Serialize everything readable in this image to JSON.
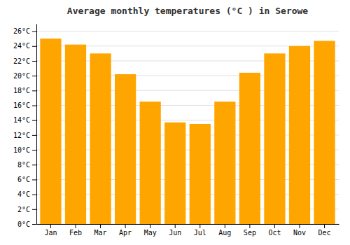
{
  "chart_data": {
    "type": "bar",
    "title": "Average monthly temperatures (°C ) in Serowe",
    "categories": [
      "Jan",
      "Feb",
      "Mar",
      "Apr",
      "May",
      "Jun",
      "Jul",
      "Aug",
      "Sep",
      "Oct",
      "Nov",
      "Dec"
    ],
    "values": [
      25.0,
      24.2,
      23.0,
      20.2,
      16.5,
      13.7,
      13.5,
      16.5,
      20.4,
      23.0,
      24.0,
      24.7
    ],
    "color": "#FFA500",
    "ylim": [
      0,
      27
    ],
    "yticks": [
      {
        "value": 0,
        "label": "0°C"
      },
      {
        "value": 2,
        "label": "2°C"
      },
      {
        "value": 4,
        "label": "4°C"
      },
      {
        "value": 6,
        "label": "6°C"
      },
      {
        "value": 8,
        "label": "8°C"
      },
      {
        "value": 10,
        "label": "10°C"
      },
      {
        "value": 12,
        "label": "12°C"
      },
      {
        "value": 14,
        "label": "14°C"
      },
      {
        "value": 16,
        "label": "16°C"
      },
      {
        "value": 18,
        "label": "18°C"
      },
      {
        "value": 20,
        "label": "20°C"
      },
      {
        "value": 22,
        "label": "22°C"
      },
      {
        "value": 24,
        "label": "24°C"
      },
      {
        "value": 26,
        "label": "26°C"
      }
    ],
    "grid": true
  }
}
